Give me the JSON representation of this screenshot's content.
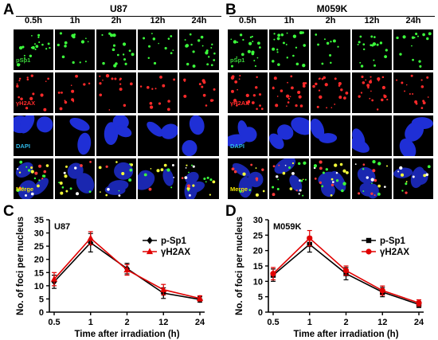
{
  "figure": {
    "panels": {
      "A": {
        "letter": "A",
        "cell_line": "U87",
        "timepoints": [
          "0.5h",
          "1h",
          "2h",
          "12h",
          "24h"
        ],
        "rows": [
          {
            "label": "pSp1",
            "label_color": "#39d339",
            "channel": "green"
          },
          {
            "label": "γH2AX",
            "label_color": "#ff2a2a",
            "channel": "red"
          },
          {
            "label": "DAPI",
            "label_color": "#2fb8e8",
            "channel": "blue"
          },
          {
            "label": "Merge",
            "label_color": "#f2e600",
            "channel": "merge"
          }
        ]
      },
      "B": {
        "letter": "B",
        "cell_line": "M059K",
        "timepoints": [
          "0.5h",
          "1h",
          "2h",
          "12h",
          "24h"
        ],
        "rows": [
          {
            "label": "pSp1",
            "label_color": "#39d339",
            "channel": "green"
          },
          {
            "label": "γH2AX",
            "label_color": "#ff2a2a",
            "channel": "red"
          },
          {
            "label": "DAPI",
            "label_color": "#2fb8e8",
            "channel": "blue"
          },
          {
            "label": "Merge",
            "label_color": "#f2e600",
            "channel": "merge"
          }
        ]
      },
      "C": {
        "letter": "C"
      },
      "D": {
        "letter": "D"
      }
    }
  },
  "chart_data": [
    {
      "id": "C",
      "type": "line",
      "annotation": "U87",
      "categories": [
        "0.5",
        "1",
        "2",
        "12",
        "24"
      ],
      "xlabel": "Time after irradiation (h)",
      "ylabel": "No. of foci per nucleus",
      "ylim": [
        0,
        35
      ],
      "yticks": [
        0,
        5,
        10,
        15,
        20,
        25,
        30,
        35
      ],
      "legend_position": "right",
      "series": [
        {
          "name": "p-Sp1",
          "color": "#000000",
          "marker": "diamond",
          "values": [
            11.5,
            26.3,
            16.5,
            7.2,
            4.8
          ],
          "errors": [
            2.5,
            3.5,
            2.0,
            2.0,
            1.0
          ]
        },
        {
          "name": "γH2AX",
          "color": "#e00000",
          "marker": "triangle",
          "values": [
            12.5,
            28.0,
            16.0,
            8.5,
            5.2
          ],
          "errors": [
            2.5,
            2.5,
            2.0,
            2.0,
            1.0
          ]
        }
      ]
    },
    {
      "id": "D",
      "type": "line",
      "annotation": "M059K",
      "categories": [
        "0.5",
        "1",
        "2",
        "12",
        "24"
      ],
      "xlabel": "Time after irradiation (h)",
      "ylabel": "No. of foci per nucleus",
      "ylim": [
        0,
        30
      ],
      "yticks": [
        0,
        5,
        10,
        15,
        20,
        25,
        30
      ],
      "legend_position": "right",
      "series": [
        {
          "name": "p-Sp1",
          "color": "#000000",
          "marker": "square",
          "values": [
            12.0,
            22.0,
            12.5,
            6.5,
            2.5
          ],
          "errors": [
            2.0,
            2.5,
            2.0,
            1.5,
            1.0
          ]
        },
        {
          "name": "γH2AX",
          "color": "#e00000",
          "marker": "circle",
          "values": [
            12.5,
            24.0,
            13.5,
            7.0,
            3.0
          ],
          "errors": [
            2.0,
            2.5,
            1.5,
            1.5,
            1.0
          ]
        }
      ]
    }
  ]
}
